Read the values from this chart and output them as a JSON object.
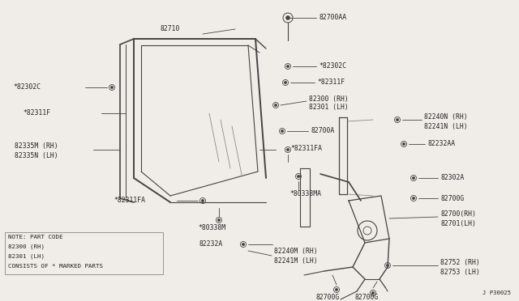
{
  "bg_color": "#f0ede8",
  "line_color": "#444444",
  "text_color": "#222222",
  "diagram_id": "J P30025",
  "note_line1": "NOTE: PART CODE",
  "note_line2": "82300 (RH)",
  "note_line3": "82301 (LH)",
  "note_line4": "CONSISTS OF * MARKED PARTS",
  "font_size_label": 5.8,
  "font_size_note": 5.4,
  "font_size_id": 5.2
}
